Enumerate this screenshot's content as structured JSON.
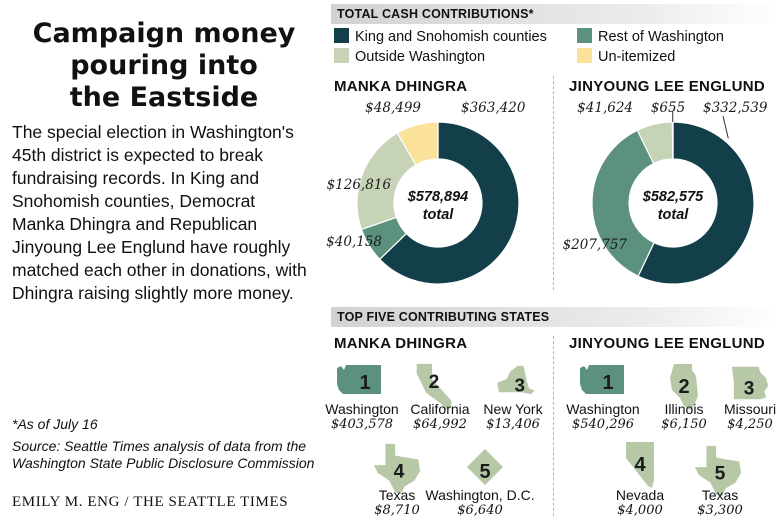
{
  "headline": [
    "Campaign money",
    "pouring into",
    "the Eastside"
  ],
  "intro": "The special election in Washington's 45th district is expected to break fundraising records. In King and Snohomish counties, Democrat Manka Dhingra and Republican Jinyoung Lee Englund have roughly matched each other in donations, with Dhingra raising slightly more money.",
  "footnote": "*As of July 16",
  "source": "Source: Seattle Times analysis of data from the Washington State Public Disclosure Commission",
  "credit": "EMILY M. ENG / THE SEATTLE TIMES",
  "colors": {
    "king_snohomish": "#123f4a",
    "rest_of_wa": "#5c917e",
    "outside_wa": "#c6d3b7",
    "unitemized": "#fae29a",
    "map_washington": "#5c917e",
    "map_other": "#b7c8a7"
  },
  "cash_section": {
    "title": "TOTAL CASH CONTRIBUTIONS*",
    "legend": [
      {
        "label": "King and Snohomish counties",
        "color_key": "king_snohomish"
      },
      {
        "label": "Rest of Washington",
        "color_key": "rest_of_wa"
      },
      {
        "label": "Outside Washington",
        "color_key": "outside_wa"
      },
      {
        "label": "Un-itemized",
        "color_key": "unitemized"
      }
    ]
  },
  "states_section": {
    "title": "TOP FIVE CONTRIBUTING STATES"
  },
  "chart_data": [
    {
      "type": "pie",
      "title": "MANKA DHINGRA",
      "center_value": "$578,894",
      "center_label": "total",
      "slices": [
        {
          "category": "King and Snohomish counties",
          "value": 363420,
          "label": "$363,420",
          "color_key": "king_snohomish"
        },
        {
          "category": "Rest of Washington",
          "value": 40158,
          "label": "$40,158",
          "color_key": "rest_of_wa"
        },
        {
          "category": "Outside Washington",
          "value": 126816,
          "label": "$126,816",
          "color_key": "outside_wa"
        },
        {
          "category": "Un-itemized",
          "value": 48499,
          "label": "$48,499",
          "color_key": "unitemized"
        }
      ]
    },
    {
      "type": "pie",
      "title": "JINYOUNG LEE ENGLUND",
      "center_value": "$582,575",
      "center_label": "total",
      "slices": [
        {
          "category": "King and Snohomish counties",
          "value": 332539,
          "label": "$332,539",
          "color_key": "king_snohomish"
        },
        {
          "category": "Rest of Washington",
          "value": 207757,
          "label": "$207,757",
          "color_key": "rest_of_wa"
        },
        {
          "category": "Outside Washington",
          "value": 41624,
          "label": "$41,624",
          "color_key": "outside_wa"
        },
        {
          "category": "Un-itemized",
          "value": 655,
          "label": "$655",
          "color_key": "unitemized"
        }
      ]
    },
    {
      "type": "table",
      "title": "MANKA DHINGRA",
      "rows": [
        {
          "rank": "1",
          "state": "Washington",
          "amount": "$403,578",
          "icon": "washington-map-icon"
        },
        {
          "rank": "2",
          "state": "California",
          "amount": "$64,992",
          "icon": "california-map-icon"
        },
        {
          "rank": "3",
          "state": "New York",
          "amount": "$13,406",
          "icon": "new-york-map-icon"
        },
        {
          "rank": "4",
          "state": "Texas",
          "amount": "$8,710",
          "icon": "texas-map-icon"
        },
        {
          "rank": "5",
          "state": "Washington, D.C.",
          "amount": "$6,640",
          "icon": "washington-dc-map-icon"
        }
      ]
    },
    {
      "type": "table",
      "title": "JINYOUNG LEE ENGLUND",
      "rows": [
        {
          "rank": "1",
          "state": "Washington",
          "amount": "$540,296",
          "icon": "washington-map-icon"
        },
        {
          "rank": "2",
          "state": "Illinois",
          "amount": "$6,150",
          "icon": "illinois-map-icon"
        },
        {
          "rank": "3",
          "state": "Missouri",
          "amount": "$4,250",
          "icon": "missouri-map-icon"
        },
        {
          "rank": "4",
          "state": "Nevada",
          "amount": "$4,000",
          "icon": "nevada-map-icon"
        },
        {
          "rank": "5",
          "state": "Texas",
          "amount": "$3,300",
          "icon": "texas-map-icon"
        }
      ]
    }
  ]
}
